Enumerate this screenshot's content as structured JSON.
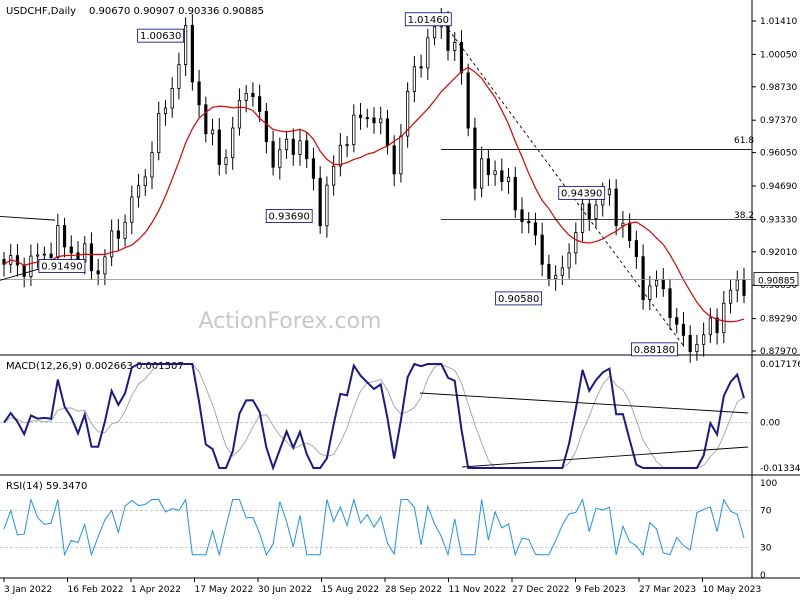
{
  "chart_data": [
    {
      "type": "candlestick",
      "symbol_label": "USDCHF,Daily",
      "ohlc_label": "0.90670 0.90907 0.90336 0.90885",
      "y_ticks": [
        "1.01410",
        "1.00050",
        "0.98730",
        "0.97370",
        "0.96050",
        "0.94690",
        "0.93330",
        "0.92010",
        "0.90650",
        "0.89290",
        "0.87970"
      ],
      "current_price": "0.90885",
      "watermark": "ActionForex.com",
      "annotations": [
        {
          "label": "1.00630",
          "date_index": 27,
          "price": 1.0063
        },
        {
          "label": "1.01460",
          "date_index": 65,
          "price": 1.0146
        },
        {
          "label": "0.93690",
          "date_index": 47,
          "price": 0.9369
        },
        {
          "label": "0.91490",
          "date_index": 4,
          "price": 0.9149
        },
        {
          "label": "0.90580",
          "date_index": 82,
          "price": 0.9058
        },
        {
          "label": "0.94390",
          "date_index": 89,
          "price": 0.9439
        },
        {
          "label": "0.88180",
          "date_index": 101,
          "price": 0.8818
        }
      ],
      "fib_levels": [
        {
          "label": "61.8",
          "price": 0.9618
        },
        {
          "label": "38.2",
          "price": 0.9333
        }
      ],
      "moving_average_color": "#e00000",
      "candle_color": "#000000"
    },
    {
      "type": "line",
      "indicator_label": "MACD(12,26,9) 0.002663 0.001507",
      "y_ticks": [
        "0.017176",
        "0.00",
        "-0.01334"
      ],
      "macd_color": "#1a1a8c",
      "signal_color": "#aaaaaa"
    },
    {
      "type": "line",
      "indicator_label": "RSI(14) 59.3470",
      "y_ticks": [
        "100",
        "70",
        "30",
        "0"
      ],
      "rsi_color": "#1e90ff"
    }
  ],
  "x_labels": [
    "3 Jan 2022",
    "16 Feb 2022",
    "1 Apr 2022",
    "17 May 2022",
    "30 Jun 2022",
    "15 Aug 2022",
    "28 Sep 2022",
    "11 Nov 2022",
    "27 Dec 2022",
    "9 Feb 2023",
    "27 Mar 2023",
    "10 May 2023"
  ]
}
